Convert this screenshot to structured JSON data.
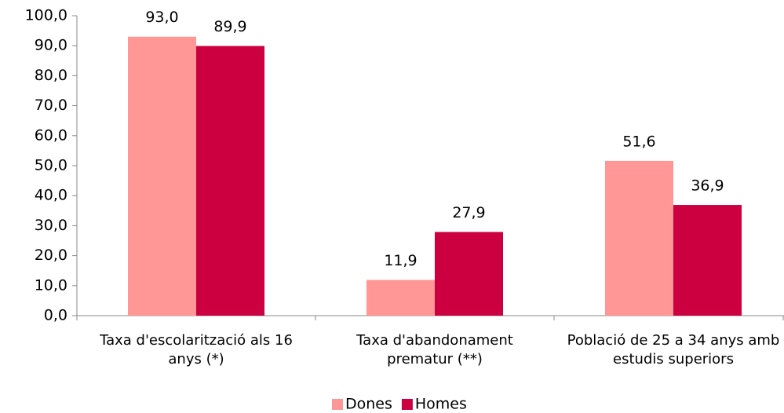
{
  "chart_data": {
    "type": "bar",
    "categories": [
      "Taxa d'escolarització als 16 anys (*)",
      "Taxa d'abandonament prematur (**)",
      "Població de 25 a 34 anys amb estudis superiors"
    ],
    "series": [
      {
        "name": "Dones",
        "color": "#ff9797",
        "values": [
          93.0,
          11.9,
          51.6
        ],
        "value_labels": [
          "93,0",
          "11,9",
          "51,6"
        ]
      },
      {
        "name": "Homes",
        "color": "#cc0040",
        "values": [
          89.9,
          27.9,
          36.9
        ],
        "value_labels": [
          "89,9",
          "27,9",
          "36,9"
        ]
      }
    ],
    "ylim": [
      0,
      100
    ],
    "yticks": [
      {
        "value": 0,
        "label": "0,0"
      },
      {
        "value": 10,
        "label": "10,0"
      },
      {
        "value": 20,
        "label": "20,0"
      },
      {
        "value": 30,
        "label": "30,0"
      },
      {
        "value": 40,
        "label": "40,0"
      },
      {
        "value": 50,
        "label": "50,0"
      },
      {
        "value": 60,
        "label": "60,0"
      },
      {
        "value": 70,
        "label": "70,0"
      },
      {
        "value": 80,
        "label": "80,0"
      },
      {
        "value": 90,
        "label": "90,0"
      },
      {
        "value": 100,
        "label": "100,0"
      }
    ],
    "legend": "bottom"
  }
}
